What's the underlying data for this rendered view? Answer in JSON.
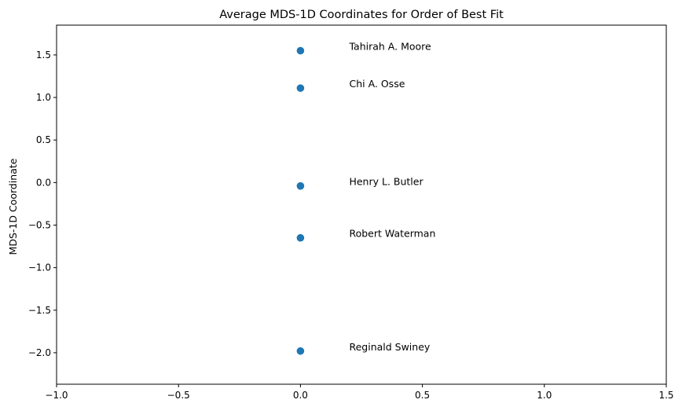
{
  "chart_data": {
    "type": "scatter",
    "title": "Average MDS-1D Coordinates for Order of Best Fit",
    "xlabel": "",
    "ylabel": "MDS-1D Coordinate",
    "xlim": [
      -1.0,
      1.5
    ],
    "ylim": [
      -2.37,
      1.85
    ],
    "grid": false,
    "marker_color": "#1f77b4",
    "x_ticks": [
      {
        "value": -1.0,
        "label": "−1.0"
      },
      {
        "value": -0.5,
        "label": "−0.5"
      },
      {
        "value": 0.0,
        "label": "0.0"
      },
      {
        "value": 0.5,
        "label": "0.5"
      },
      {
        "value": 1.0,
        "label": "1.0"
      },
      {
        "value": 1.5,
        "label": "1.5"
      }
    ],
    "y_ticks": [
      {
        "value": 1.5,
        "label": "1.5"
      },
      {
        "value": 1.0,
        "label": "1.0"
      },
      {
        "value": 0.5,
        "label": "0.5"
      },
      {
        "value": 0.0,
        "label": "0.0"
      },
      {
        "value": -0.5,
        "label": "−0.5"
      },
      {
        "value": -1.0,
        "label": "−1.0"
      },
      {
        "value": -1.5,
        "label": "−1.5"
      },
      {
        "value": -2.0,
        "label": "−2.0"
      }
    ],
    "points": [
      {
        "x": 0.0,
        "y": 1.55,
        "label": "Tahirah A. Moore"
      },
      {
        "x": 0.0,
        "y": 1.11,
        "label": "Chi A. Osse"
      },
      {
        "x": 0.0,
        "y": -0.04,
        "label": "Henry L. Butler"
      },
      {
        "x": 0.0,
        "y": -0.65,
        "label": "Robert Waterman"
      },
      {
        "x": 0.0,
        "y": -1.98,
        "label": "Reginald Swiney"
      }
    ]
  }
}
